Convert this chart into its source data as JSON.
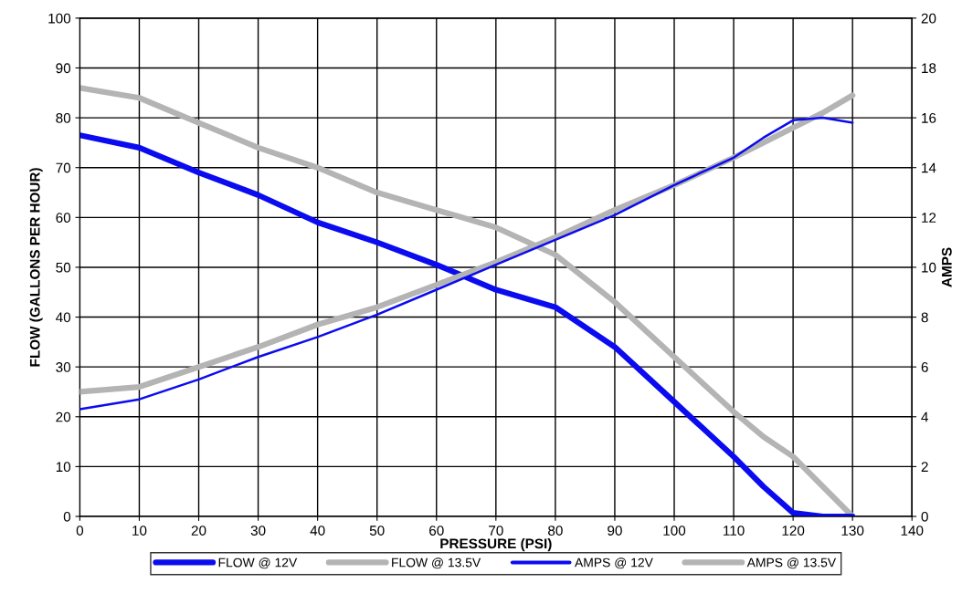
{
  "chart_data": {
    "type": "line",
    "xlabel": "PRESSURE (PSI)",
    "ylabel": "FLOW (GALLONS PER HOUR)",
    "y2label": "AMPS",
    "xlim": [
      0,
      140
    ],
    "xticks": [
      0,
      10,
      20,
      30,
      40,
      50,
      60,
      70,
      80,
      90,
      100,
      110,
      120,
      130,
      140
    ],
    "ylim": [
      0,
      100
    ],
    "yticks": [
      0,
      10,
      20,
      30,
      40,
      50,
      60,
      70,
      80,
      90,
      100
    ],
    "y2lim": [
      0,
      20
    ],
    "y2ticks": [
      0,
      2,
      4,
      6,
      8,
      10,
      12,
      14,
      16,
      18,
      20
    ],
    "grid": true,
    "legend": "bottom",
    "x": [
      0,
      10,
      20,
      30,
      40,
      50,
      60,
      70,
      80,
      90,
      100,
      110,
      115,
      120,
      125,
      130
    ],
    "series": [
      {
        "name": "FLOW @ 12V",
        "color": "#0b0bf0",
        "values": [
          76.5,
          74,
          69,
          64.5,
          59,
          55,
          50.5,
          45.5,
          42,
          34,
          23,
          12,
          6,
          0.7,
          0,
          0
        ]
      },
      {
        "name": "FLOW @ 13.5V",
        "color": "#b4b4b4",
        "values": [
          86,
          84,
          79,
          74,
          70,
          65,
          61.5,
          58,
          52.5,
          43,
          32,
          21,
          16,
          12,
          6,
          0
        ]
      },
      {
        "name": "AMPS @ 12V",
        "color": "#0b0bf0",
        "axis": "y2",
        "values": [
          4.3,
          4.7,
          5.5,
          6.4,
          7.2,
          8.1,
          9.1,
          10.1,
          11.1,
          12.1,
          13.3,
          14.4,
          15.2,
          15.9,
          16.0,
          15.8
        ]
      },
      {
        "name": "AMPS @ 13.5V",
        "color": "#b4b4b4",
        "axis": "y2",
        "values": [
          5.0,
          5.2,
          6.0,
          6.8,
          7.7,
          8.4,
          9.3,
          10.2,
          11.2,
          12.3,
          13.3,
          14.4,
          15.0,
          15.6,
          16.2,
          16.9
        ]
      }
    ]
  }
}
